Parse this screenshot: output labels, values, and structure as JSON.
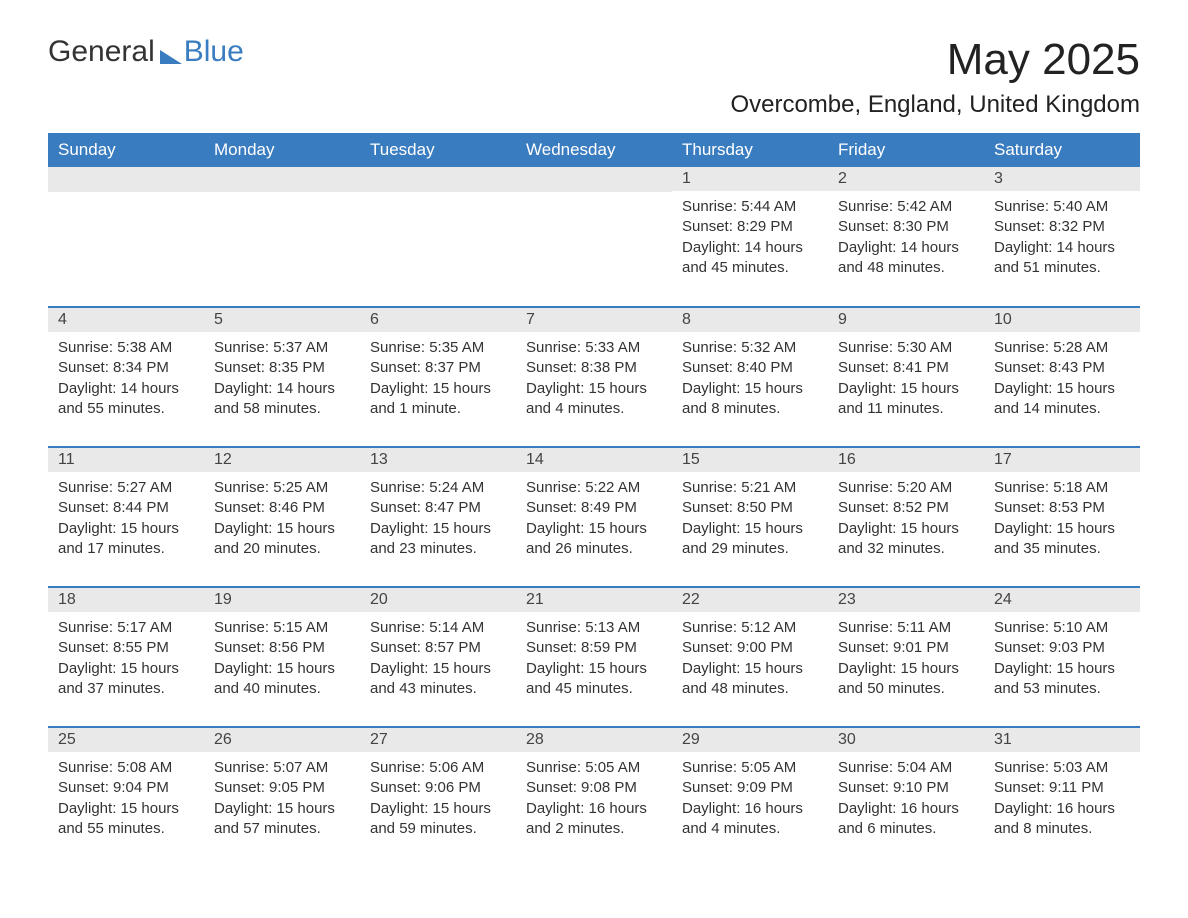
{
  "logo": {
    "text1": "General",
    "text2": "Blue"
  },
  "title": "May 2025",
  "location": "Overcombe, England, United Kingdom",
  "colors": {
    "brand_blue": "#3a7cc0",
    "daynum_bg": "#e9e9e9",
    "text": "#333333",
    "title_text": "#222222",
    "background": "#ffffff"
  },
  "typography": {
    "title_fontsize": 44,
    "location_fontsize": 24,
    "weekday_fontsize": 17,
    "daynum_fontsize": 16,
    "body_fontsize": 15
  },
  "layout": {
    "columns": 7,
    "rows": 5,
    "first_weekday_index": 4
  },
  "weekdays": [
    "Sunday",
    "Monday",
    "Tuesday",
    "Wednesday",
    "Thursday",
    "Friday",
    "Saturday"
  ],
  "days": [
    {
      "n": "1",
      "sunrise": "5:44 AM",
      "sunset": "8:29 PM",
      "daylight": "14 hours and 45 minutes."
    },
    {
      "n": "2",
      "sunrise": "5:42 AM",
      "sunset": "8:30 PM",
      "daylight": "14 hours and 48 minutes."
    },
    {
      "n": "3",
      "sunrise": "5:40 AM",
      "sunset": "8:32 PM",
      "daylight": "14 hours and 51 minutes."
    },
    {
      "n": "4",
      "sunrise": "5:38 AM",
      "sunset": "8:34 PM",
      "daylight": "14 hours and 55 minutes."
    },
    {
      "n": "5",
      "sunrise": "5:37 AM",
      "sunset": "8:35 PM",
      "daylight": "14 hours and 58 minutes."
    },
    {
      "n": "6",
      "sunrise": "5:35 AM",
      "sunset": "8:37 PM",
      "daylight": "15 hours and 1 minute."
    },
    {
      "n": "7",
      "sunrise": "5:33 AM",
      "sunset": "8:38 PM",
      "daylight": "15 hours and 4 minutes."
    },
    {
      "n": "8",
      "sunrise": "5:32 AM",
      "sunset": "8:40 PM",
      "daylight": "15 hours and 8 minutes."
    },
    {
      "n": "9",
      "sunrise": "5:30 AM",
      "sunset": "8:41 PM",
      "daylight": "15 hours and 11 minutes."
    },
    {
      "n": "10",
      "sunrise": "5:28 AM",
      "sunset": "8:43 PM",
      "daylight": "15 hours and 14 minutes."
    },
    {
      "n": "11",
      "sunrise": "5:27 AM",
      "sunset": "8:44 PM",
      "daylight": "15 hours and 17 minutes."
    },
    {
      "n": "12",
      "sunrise": "5:25 AM",
      "sunset": "8:46 PM",
      "daylight": "15 hours and 20 minutes."
    },
    {
      "n": "13",
      "sunrise": "5:24 AM",
      "sunset": "8:47 PM",
      "daylight": "15 hours and 23 minutes."
    },
    {
      "n": "14",
      "sunrise": "5:22 AM",
      "sunset": "8:49 PM",
      "daylight": "15 hours and 26 minutes."
    },
    {
      "n": "15",
      "sunrise": "5:21 AM",
      "sunset": "8:50 PM",
      "daylight": "15 hours and 29 minutes."
    },
    {
      "n": "16",
      "sunrise": "5:20 AM",
      "sunset": "8:52 PM",
      "daylight": "15 hours and 32 minutes."
    },
    {
      "n": "17",
      "sunrise": "5:18 AM",
      "sunset": "8:53 PM",
      "daylight": "15 hours and 35 minutes."
    },
    {
      "n": "18",
      "sunrise": "5:17 AM",
      "sunset": "8:55 PM",
      "daylight": "15 hours and 37 minutes."
    },
    {
      "n": "19",
      "sunrise": "5:15 AM",
      "sunset": "8:56 PM",
      "daylight": "15 hours and 40 minutes."
    },
    {
      "n": "20",
      "sunrise": "5:14 AM",
      "sunset": "8:57 PM",
      "daylight": "15 hours and 43 minutes."
    },
    {
      "n": "21",
      "sunrise": "5:13 AM",
      "sunset": "8:59 PM",
      "daylight": "15 hours and 45 minutes."
    },
    {
      "n": "22",
      "sunrise": "5:12 AM",
      "sunset": "9:00 PM",
      "daylight": "15 hours and 48 minutes."
    },
    {
      "n": "23",
      "sunrise": "5:11 AM",
      "sunset": "9:01 PM",
      "daylight": "15 hours and 50 minutes."
    },
    {
      "n": "24",
      "sunrise": "5:10 AM",
      "sunset": "9:03 PM",
      "daylight": "15 hours and 53 minutes."
    },
    {
      "n": "25",
      "sunrise": "5:08 AM",
      "sunset": "9:04 PM",
      "daylight": "15 hours and 55 minutes."
    },
    {
      "n": "26",
      "sunrise": "5:07 AM",
      "sunset": "9:05 PM",
      "daylight": "15 hours and 57 minutes."
    },
    {
      "n": "27",
      "sunrise": "5:06 AM",
      "sunset": "9:06 PM",
      "daylight": "15 hours and 59 minutes."
    },
    {
      "n": "28",
      "sunrise": "5:05 AM",
      "sunset": "9:08 PM",
      "daylight": "16 hours and 2 minutes."
    },
    {
      "n": "29",
      "sunrise": "5:05 AM",
      "sunset": "9:09 PM",
      "daylight": "16 hours and 4 minutes."
    },
    {
      "n": "30",
      "sunrise": "5:04 AM",
      "sunset": "9:10 PM",
      "daylight": "16 hours and 6 minutes."
    },
    {
      "n": "31",
      "sunrise": "5:03 AM",
      "sunset": "9:11 PM",
      "daylight": "16 hours and 8 minutes."
    }
  ],
  "labels": {
    "sunrise": "Sunrise: ",
    "sunset": "Sunset: ",
    "daylight": "Daylight: "
  }
}
